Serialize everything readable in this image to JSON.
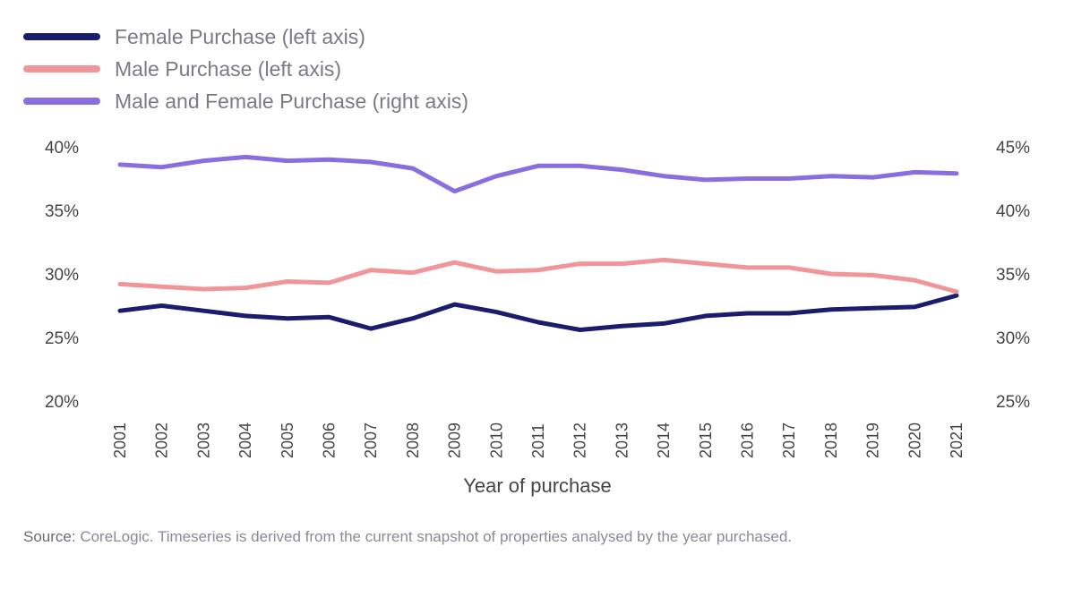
{
  "source": {
    "lead": "Source:",
    "text": " CoreLogic. Timeseries is derived from the current snapshot of properties analysed by the year purchased."
  },
  "chart_data": {
    "type": "line",
    "xlabel": "Year of purchase",
    "x": [
      "2001",
      "2002",
      "2003",
      "2004",
      "2005",
      "2006",
      "2007",
      "2008",
      "2009",
      "2010",
      "2011",
      "2012",
      "2013",
      "2014",
      "2015",
      "2016",
      "2017",
      "2018",
      "2019",
      "2020",
      "2021"
    ],
    "left_axis": {
      "range": [
        20,
        40
      ],
      "ticks": [
        "20%",
        "25%",
        "30%",
        "35%",
        "40%"
      ],
      "tick_values": [
        20,
        25,
        30,
        35,
        40
      ]
    },
    "right_axis": {
      "range": [
        25,
        45
      ],
      "ticks": [
        "25%",
        "30%",
        "35%",
        "40%",
        "45%"
      ],
      "tick_values": [
        25,
        30,
        35,
        40,
        45
      ]
    },
    "grid": false,
    "legend_position": "top-left",
    "series": [
      {
        "name": "Female Purchase (left axis)",
        "axis": "left",
        "color": "#1c1c6e",
        "values": [
          27.1,
          27.5,
          27.1,
          26.7,
          26.5,
          26.6,
          25.7,
          26.5,
          27.6,
          27.0,
          26.2,
          25.6,
          25.9,
          26.1,
          26.7,
          26.9,
          26.9,
          27.2,
          27.3,
          27.4,
          28.3
        ]
      },
      {
        "name": "Male Purchase (left axis)",
        "axis": "left",
        "color": "#f0969a",
        "values": [
          29.2,
          29.0,
          28.8,
          28.9,
          29.4,
          29.3,
          30.3,
          30.1,
          30.9,
          30.2,
          30.3,
          30.8,
          30.8,
          31.1,
          30.8,
          30.5,
          30.5,
          30.0,
          29.9,
          29.5,
          28.6
        ]
      },
      {
        "name": "Male and Female Purchase (right axis)",
        "axis": "right",
        "color": "#8a6ee0",
        "values": [
          43.6,
          43.4,
          43.9,
          44.2,
          43.9,
          44.0,
          43.8,
          43.3,
          41.5,
          42.7,
          43.5,
          43.5,
          43.2,
          42.7,
          42.4,
          42.5,
          42.5,
          42.7,
          42.6,
          43.0,
          42.9
        ]
      }
    ]
  }
}
